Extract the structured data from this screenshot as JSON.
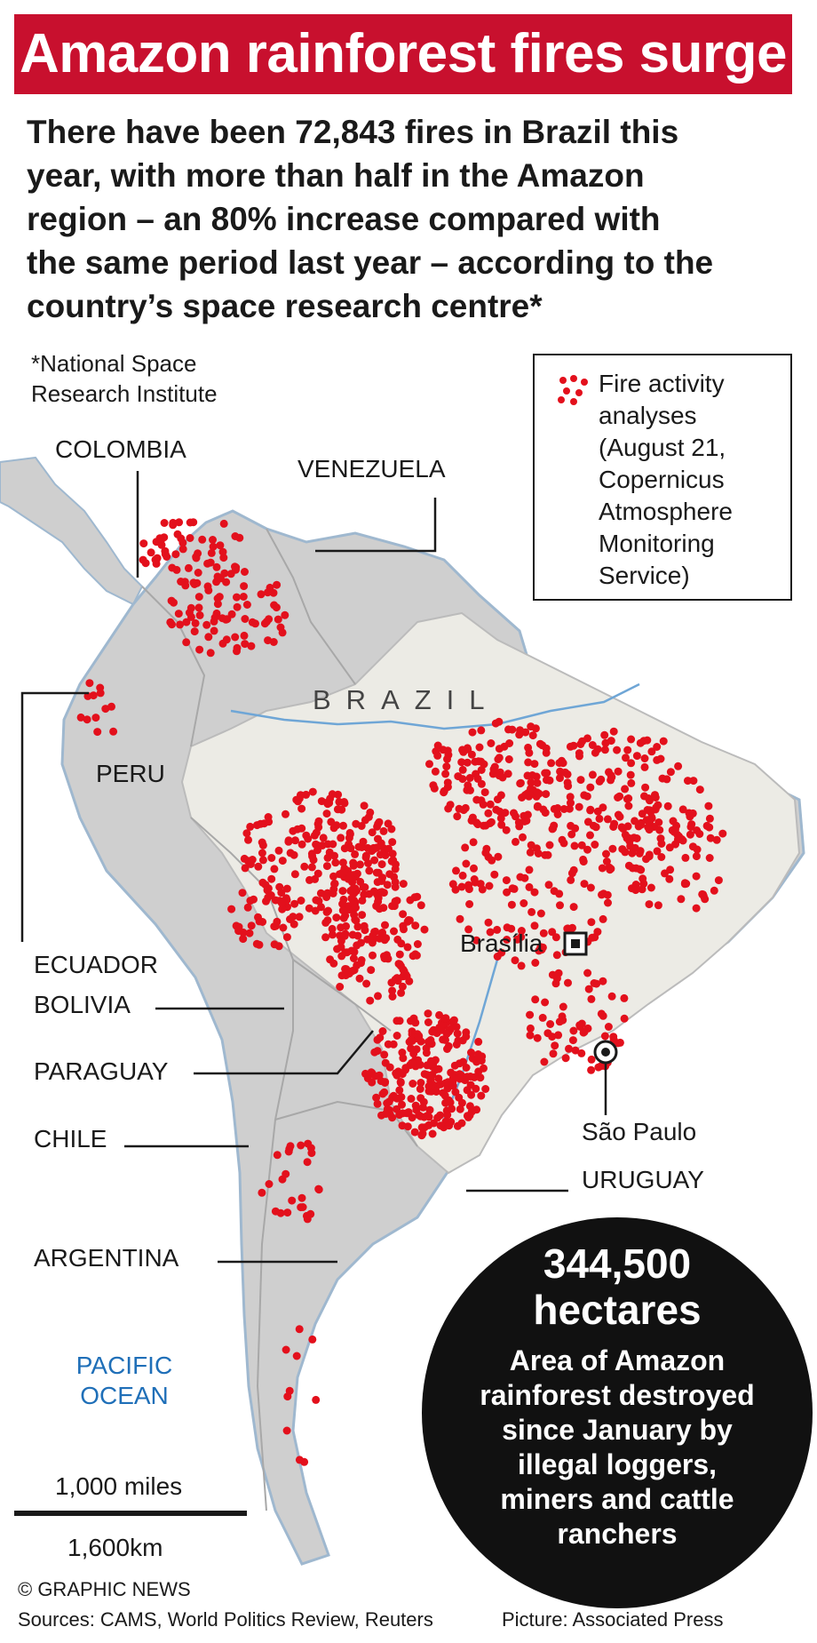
{
  "header": {
    "title": "Amazon rainforest fires surge"
  },
  "intro": {
    "lines": [
      "There have been 72,843 fires in Brazil this",
      "year, with more than half in the Amazon",
      "region – an 80% increase compared with",
      "the same period last year – according to the",
      "country’s space research centre*"
    ]
  },
  "footnote": {
    "line1": "*National Space",
    "line2": "Research Institute"
  },
  "legend": {
    "icon": "fire-dots-icon",
    "lines": [
      "Fire activity",
      "analyses",
      "(August 21,",
      "Copernicus",
      "Atmosphere",
      "Monitoring",
      "Service)"
    ]
  },
  "countries": {
    "colombia": "COLOMBIA",
    "venezuela": "VENEZUELA",
    "brazil": "BRAZIL",
    "peru": "PERU",
    "ecuador": "ECUADOR",
    "bolivia": "BOLIVIA",
    "paraguay": "PARAGUAY",
    "chile": "CHILE",
    "argentina": "ARGENTINA",
    "uruguay": "URUGUAY"
  },
  "cities": {
    "brasilia": "Brasília",
    "sao_paulo": "São Paulo"
  },
  "ocean": {
    "line1": "PACIFIC",
    "line2": "OCEAN"
  },
  "stat": {
    "value": "344,500",
    "unit": "hectares",
    "description_lines": [
      "Area of Amazon",
      "rainforest destroyed",
      "since January by",
      "illegal loggers,",
      "miners and cattle",
      "ranchers"
    ]
  },
  "scale": {
    "miles": "1,000 miles",
    "km": "1,600km"
  },
  "footer": {
    "copyright": "© GRAPHIC NEWS",
    "sources": "Sources: CAMS, World Politics Review, Reuters",
    "picture": "Picture: Associated Press"
  },
  "colors": {
    "banner": "#c8102e",
    "land_brazil": "#ecebe5",
    "land_neighbors": "#cfcfcf",
    "fire": "#e3101c",
    "water": "#1f6fb8",
    "stat_circle": "#111111"
  }
}
